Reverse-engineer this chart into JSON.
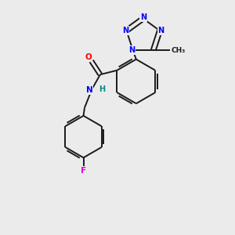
{
  "bg_color": "#ebebeb",
  "bond_color": "#1a1a1a",
  "N_color": "#0000ff",
  "O_color": "#ff0000",
  "F_color": "#dd00dd",
  "H_color": "#008b8b",
  "figsize": [
    3.0,
    3.0
  ],
  "dpi": 100,
  "xlim": [
    0,
    10
  ],
  "ylim": [
    0,
    10
  ]
}
